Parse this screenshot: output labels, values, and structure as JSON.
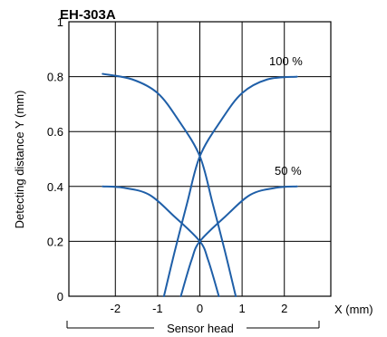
{
  "chart_data": {
    "type": "line",
    "title": "EH-303A",
    "xlabel": "X (mm)",
    "ylabel": "Detecting distance Y (mm)",
    "sublabel": "Sensor head",
    "xlim": [
      -3.1,
      3.1
    ],
    "ylim": [
      0,
      1
    ],
    "x_ticks": [
      -2,
      -1,
      0,
      1,
      2
    ],
    "x_tick_labels": [
      "-2",
      "-1",
      "0",
      "1",
      "2"
    ],
    "y_ticks": [
      0,
      0.2,
      0.4,
      0.6,
      0.8,
      1
    ],
    "y_tick_labels": [
      "0",
      "0.2",
      "0.4",
      "0.6",
      "0.8",
      "1"
    ],
    "grid": true,
    "line_color": "#1f5fa8",
    "annotations": [
      {
        "text": "100 %",
        "x": 2.0,
        "y": 0.84
      },
      {
        "text": "50 %",
        "x": 2.0,
        "y": 0.44
      }
    ],
    "series": [
      {
        "group": "100 %",
        "points": [
          [
            -2.3,
            0.81
          ],
          [
            -1.6,
            0.79
          ],
          [
            -1.0,
            0.74
          ],
          [
            -0.5,
            0.64
          ],
          [
            0.0,
            0.51
          ],
          [
            0.3,
            0.34
          ],
          [
            0.6,
            0.16
          ],
          [
            0.85,
            0.0
          ]
        ]
      },
      {
        "group": "100 %",
        "points": [
          [
            -0.85,
            0.0
          ],
          [
            -0.6,
            0.16
          ],
          [
            -0.3,
            0.34
          ],
          [
            0.0,
            0.51
          ],
          [
            0.5,
            0.64
          ],
          [
            1.0,
            0.74
          ],
          [
            1.6,
            0.79
          ],
          [
            2.3,
            0.8
          ]
        ]
      },
      {
        "group": "50 %",
        "points": [
          [
            -2.3,
            0.4
          ],
          [
            -1.8,
            0.395
          ],
          [
            -1.2,
            0.37
          ],
          [
            -0.6,
            0.29
          ],
          [
            0.0,
            0.2
          ],
          [
            0.2,
            0.13
          ],
          [
            0.45,
            0.0
          ]
        ]
      },
      {
        "group": "50 %",
        "points": [
          [
            -0.45,
            0.0
          ],
          [
            -0.2,
            0.13
          ],
          [
            0.0,
            0.2
          ],
          [
            0.6,
            0.29
          ],
          [
            1.2,
            0.37
          ],
          [
            1.8,
            0.395
          ],
          [
            2.3,
            0.4
          ]
        ]
      }
    ]
  }
}
